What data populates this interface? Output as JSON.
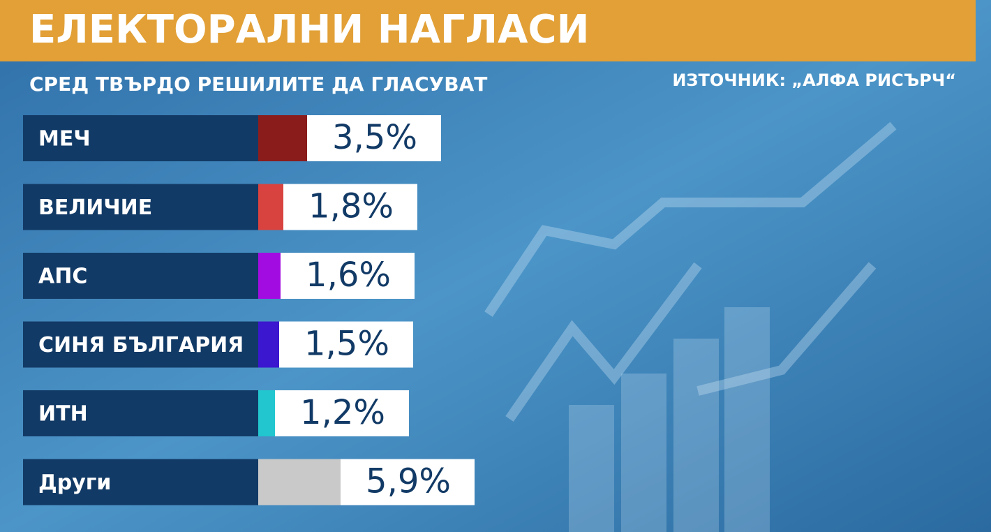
{
  "chart_data": {
    "type": "bar",
    "orientation": "horizontal",
    "title": "ЕЛЕКТОРАЛНИ НАГЛАСИ",
    "subtitle": "СРЕД ТВЪРДО РЕШИЛИТЕ ДА ГЛАСУВАТ",
    "source": "ИЗТОЧНИК: „АЛФА РИСЪРЧ“",
    "categories": [
      "МЕЧ",
      "ВЕЛИЧИЕ",
      "АПС",
      "СИНЯ БЪЛГАРИЯ",
      "ИТН",
      "Други"
    ],
    "values": [
      3.5,
      1.8,
      1.6,
      1.5,
      1.2,
      5.9
    ],
    "value_labels": [
      "3,5%",
      "1,8%",
      "1,6%",
      "1,5%",
      "1,2%",
      "5,9%"
    ],
    "colors": [
      "#8a1c1c",
      "#d8433f",
      "#a30ce0",
      "#3b17cf",
      "#22c6cf",
      "#c9c9c9"
    ]
  }
}
